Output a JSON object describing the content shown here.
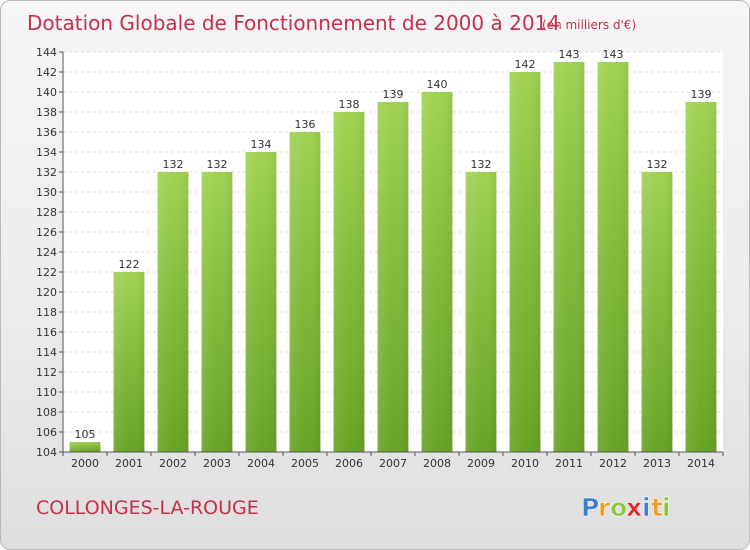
{
  "chart_data": {
    "type": "bar",
    "title": "Dotation Globale de Fonctionnement de 2000 à 2014",
    "subtitle": "(en milliers d'€)",
    "categories": [
      "2000",
      "2001",
      "2002",
      "2003",
      "2004",
      "2005",
      "2006",
      "2007",
      "2008",
      "2009",
      "2010",
      "2011",
      "2012",
      "2013",
      "2014"
    ],
    "values": [
      105,
      122,
      132,
      132,
      134,
      136,
      138,
      139,
      140,
      132,
      142,
      143,
      143,
      132,
      139
    ],
    "xlabel": "",
    "ylabel": "",
    "ylim": [
      104,
      144
    ],
    "yticks": [
      104,
      106,
      108,
      110,
      112,
      114,
      116,
      118,
      120,
      122,
      124,
      126,
      128,
      130,
      132,
      134,
      136,
      138,
      140,
      142,
      144
    ],
    "grid": true,
    "legend": "none",
    "bar_color": "#8cc63f",
    "bar_color_dark": "#6ea32a"
  },
  "footer": {
    "commune": "COLLONGES-LA-ROUGE"
  },
  "logo": {
    "text": "Proxiti",
    "letters": [
      {
        "ch": "P",
        "color": "#3b7fd0"
      },
      {
        "ch": "r",
        "color": "#f39a1f"
      },
      {
        "ch": "o",
        "color": "#8cc63f"
      },
      {
        "ch": "x",
        "color": "#e02a2a"
      },
      {
        "ch": "i",
        "color": "#3b7fd0"
      },
      {
        "ch": "t",
        "color": "#f39a1f"
      },
      {
        "ch": "i",
        "color": "#8cc63f"
      }
    ]
  }
}
